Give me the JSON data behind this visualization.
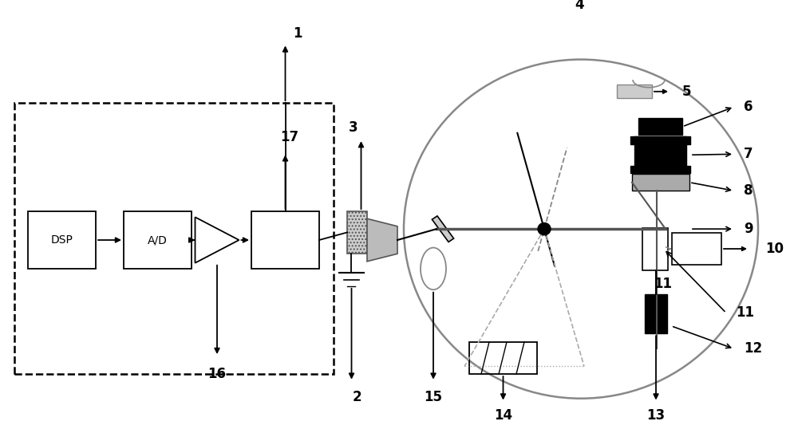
{
  "bg_color": "#ffffff",
  "figsize": [
    10.0,
    5.38
  ],
  "dpi": 100
}
